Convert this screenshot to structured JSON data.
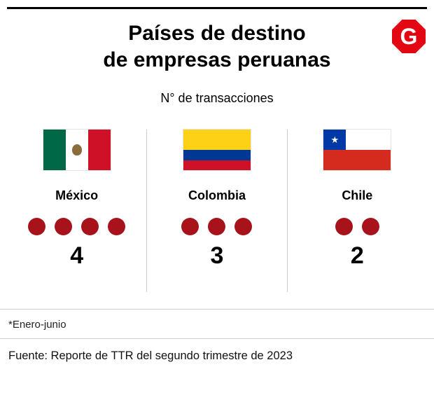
{
  "header": {
    "title_line1": "Países de destino",
    "title_line2": "de empresas peruanas",
    "subtitle": "N° de transacciones",
    "logo_text": "G"
  },
  "columns": [
    {
      "country": "México",
      "value": 4,
      "flag_icon": "mexico-flag"
    },
    {
      "country": "Colombia",
      "value": 3,
      "flag_icon": "colombia-flag"
    },
    {
      "country": "Chile",
      "value": 2,
      "flag_icon": "chile-flag"
    }
  ],
  "footer": {
    "note": "*Enero-junio",
    "source": "Fuente: Reporte de TTR del segundo trimestre de 2023"
  },
  "colors": {
    "dot_red": "#a8121a",
    "logo_red": "#e30613"
  },
  "chart_data": {
    "type": "bar",
    "title": "Países de destino de empresas peruanas",
    "subtitle": "N° de transacciones",
    "categories": [
      "México",
      "Colombia",
      "Chile"
    ],
    "values": [
      4,
      3,
      2
    ],
    "unit": "transacciones",
    "ylim": [
      0,
      4
    ],
    "note": "*Enero-junio",
    "source": "Fuente: Reporte de TTR del segundo trimestre de 2023",
    "legend": "none",
    "grid": "off"
  }
}
